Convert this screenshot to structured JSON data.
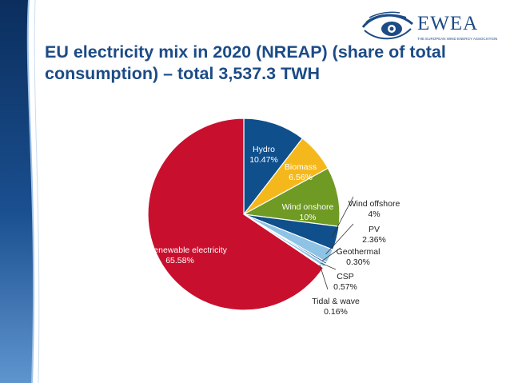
{
  "slide": {
    "title": "EU electricity mix in 2020 (NREAP) (share of total consumption) – total 3,537.3 TWH",
    "logo": {
      "text": "EWEA",
      "subtitle": "THE EUROPEAN WIND ENERGY ASSOCIATION",
      "icon": "eye-icon"
    },
    "colors": {
      "title": "#1c4b86",
      "band_dark": "#123a6e",
      "band_light": "#4a7fc0"
    }
  },
  "chart_data": {
    "type": "pie",
    "title": "EU electricity mix in 2020 (NREAP) (share of total consumption) – total 3,537.3 TWH",
    "unit": "%",
    "slices": [
      {
        "name": "Hydro",
        "value": 10.47,
        "label": "10.47%",
        "color": "#0f4f8c"
      },
      {
        "name": "Biomass",
        "value": 6.56,
        "label": "6.56%",
        "color": "#f5b81c"
      },
      {
        "name": "Wind onshore",
        "value": 10,
        "label": "10%",
        "color": "#6f9a23"
      },
      {
        "name": "Wind offshore",
        "value": 4,
        "label": "4%",
        "color": "#0f4f8c"
      },
      {
        "name": "PV",
        "value": 2.36,
        "label": "2.36%",
        "color": "#8fc3e6"
      },
      {
        "name": "Geothermal",
        "value": 0.3,
        "label": "0.30%",
        "color": "#0f4f8c"
      },
      {
        "name": "CSP",
        "value": 0.57,
        "label": "0.57%",
        "color": "#8fc3e6"
      },
      {
        "name": "Tidal & wave",
        "value": 0.16,
        "label": "0.16%",
        "color": "#0f4f8c"
      },
      {
        "name": "Non-renewable electricity",
        "value": 65.58,
        "label": "65.58%",
        "color": "#c8102e"
      }
    ],
    "legend": "none"
  }
}
